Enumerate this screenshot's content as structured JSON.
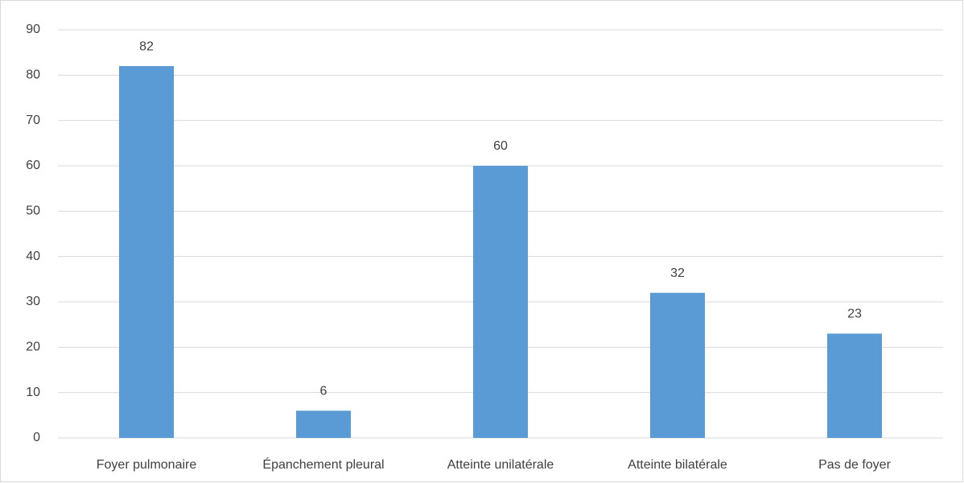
{
  "chart_data": {
    "type": "bar",
    "categories": [
      "Foyer pulmonaire",
      "Épanchement pleural",
      "Atteinte unilatérale",
      "Atteinte bilatérale",
      "Pas de foyer"
    ],
    "values": [
      82,
      6,
      60,
      32,
      23
    ],
    "color": "#5b9bd5",
    "ylim": [
      0,
      90
    ],
    "yticks": [
      0,
      10,
      20,
      30,
      40,
      50,
      60,
      70,
      80,
      90
    ],
    "grid": true
  }
}
